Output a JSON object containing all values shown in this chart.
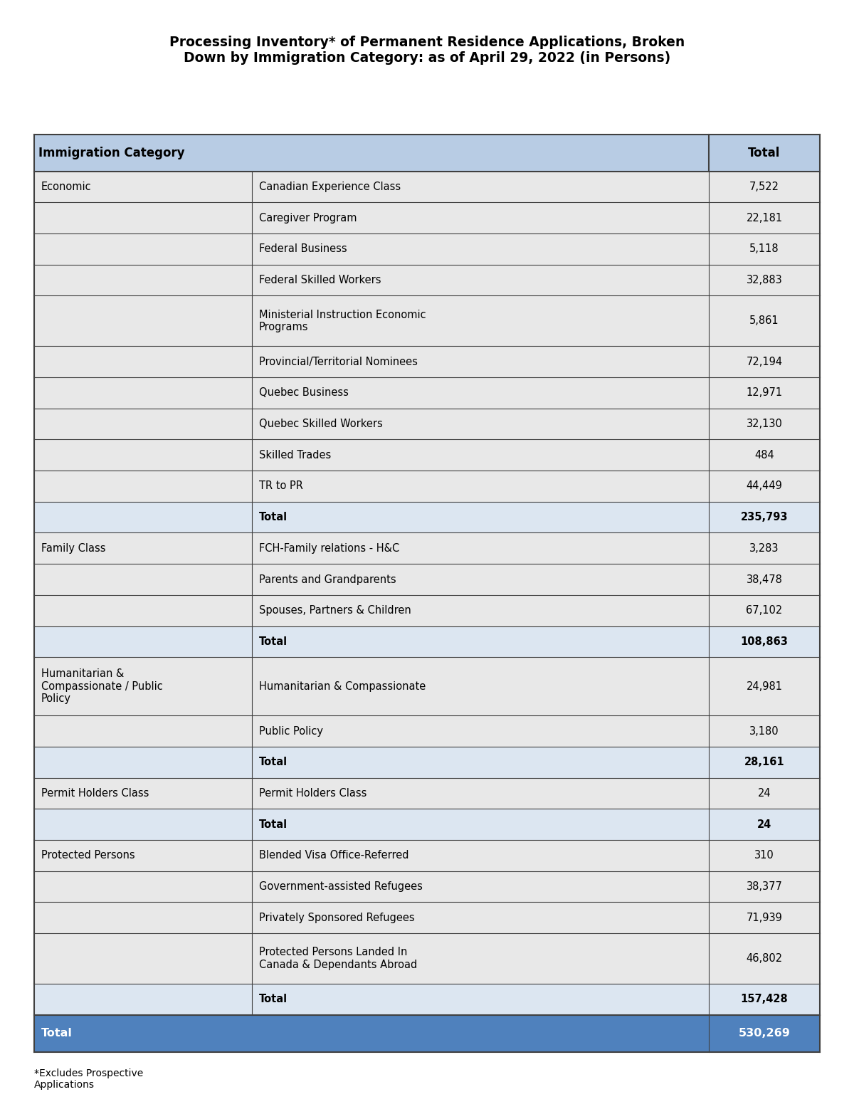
{
  "title": "Processing Inventory* of Permanent Residence Applications, Broken\nDown by Immigration Category: as of April 29, 2022 (in Persons)",
  "footnote": "*Excludes Prospective\nApplications",
  "header_bg": "#b8cce4",
  "header_text_color": "#000000",
  "total_row_bg": "#4f81bd",
  "total_row_text_color": "#ffffff",
  "subtotal_bg": "#dce6f1",
  "subtotal_text_color": "#000000",
  "normal_bg": "#f2f2f2",
  "alt_bg": "#ffffff",
  "category_bg": "#e8e8e8",
  "border_color": "#404040",
  "rows": [
    {
      "category": "Economic",
      "subcategory": "Canadian Experience Class",
      "value": "7,522",
      "is_total": false
    },
    {
      "category": "",
      "subcategory": "Caregiver Program",
      "value": "22,181",
      "is_total": false
    },
    {
      "category": "",
      "subcategory": "Federal Business",
      "value": "5,118",
      "is_total": false
    },
    {
      "category": "",
      "subcategory": "Federal Skilled Workers",
      "value": "32,883",
      "is_total": false
    },
    {
      "category": "",
      "subcategory": "Ministerial Instruction Economic\nPrograms",
      "value": "5,861",
      "is_total": false
    },
    {
      "category": "",
      "subcategory": "Provincial/Territorial Nominees",
      "value": "72,194",
      "is_total": false
    },
    {
      "category": "",
      "subcategory": "Quebec Business",
      "value": "12,971",
      "is_total": false
    },
    {
      "category": "",
      "subcategory": "Quebec Skilled Workers",
      "value": "32,130",
      "is_total": false
    },
    {
      "category": "",
      "subcategory": "Skilled Trades",
      "value": "484",
      "is_total": false
    },
    {
      "category": "",
      "subcategory": "TR to PR",
      "value": "44,449",
      "is_total": false
    },
    {
      "category": "",
      "subcategory": "Total",
      "value": "235,793",
      "is_total": true
    },
    {
      "category": "Family Class",
      "subcategory": "FCH-Family relations - H&C",
      "value": "3,283",
      "is_total": false
    },
    {
      "category": "",
      "subcategory": "Parents and Grandparents",
      "value": "38,478",
      "is_total": false
    },
    {
      "category": "",
      "subcategory": "Spouses, Partners & Children",
      "value": "67,102",
      "is_total": false
    },
    {
      "category": "",
      "subcategory": "Total",
      "value": "108,863",
      "is_total": true
    },
    {
      "category": "Humanitarian &\nCompassionate / Public\nPolicy",
      "subcategory": "Humanitarian & Compassionate",
      "value": "24,981",
      "is_total": false
    },
    {
      "category": "",
      "subcategory": "Public Policy",
      "value": "3,180",
      "is_total": false
    },
    {
      "category": "",
      "subcategory": "Total",
      "value": "28,161",
      "is_total": true
    },
    {
      "category": "Permit Holders Class",
      "subcategory": "Permit Holders Class",
      "value": "24",
      "is_total": false
    },
    {
      "category": "",
      "subcategory": "Total",
      "value": "24",
      "is_total": true
    },
    {
      "category": "Protected Persons",
      "subcategory": "Blended Visa Office-Referred",
      "value": "310",
      "is_total": false
    },
    {
      "category": "",
      "subcategory": "Government-assisted Refugees",
      "value": "38,377",
      "is_total": false
    },
    {
      "category": "",
      "subcategory": "Privately Sponsored Refugees",
      "value": "71,939",
      "is_total": false
    },
    {
      "category": "",
      "subcategory": "Protected Persons Landed In\nCanada & Dependants Abroad",
      "value": "46,802",
      "is_total": false
    },
    {
      "category": "",
      "subcategory": "Total",
      "value": "157,428",
      "is_total": true
    }
  ],
  "grand_total_label": "Total",
  "grand_total_value": "530,269"
}
